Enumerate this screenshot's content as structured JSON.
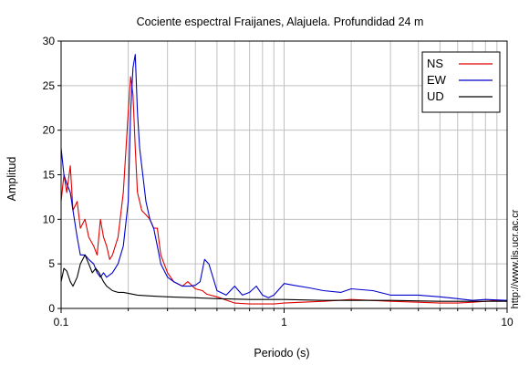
{
  "chart_data": {
    "type": "line",
    "title": "Cociente espectral Fraijanes, Alajuela. Profundidad 24 m",
    "xlabel": "Periodo (s)",
    "ylabel": "Amplitud",
    "xscale": "log",
    "xlim": [
      0.1,
      10
    ],
    "ylim": [
      0,
      30
    ],
    "x_ticks": [
      0.1,
      1,
      10
    ],
    "x_tick_labels": [
      "0.1",
      "1",
      "10"
    ],
    "y_ticks": [
      0,
      5,
      10,
      15,
      20,
      25,
      30
    ],
    "y_tick_labels": [
      "0",
      "5",
      "10",
      "15",
      "20",
      "25",
      "30"
    ],
    "grid": true,
    "legend_position": "top-right",
    "side_note": "http://www.lis.ucr.ac.cr",
    "series": [
      {
        "name": "NS",
        "color": "#e00000",
        "x": [
          0.1,
          0.103,
          0.106,
          0.11,
          0.113,
          0.118,
          0.122,
          0.128,
          0.133,
          0.14,
          0.145,
          0.15,
          0.155,
          0.16,
          0.165,
          0.17,
          0.18,
          0.19,
          0.2,
          0.205,
          0.21,
          0.215,
          0.22,
          0.225,
          0.23,
          0.24,
          0.25,
          0.26,
          0.27,
          0.28,
          0.3,
          0.32,
          0.35,
          0.37,
          0.4,
          0.43,
          0.45,
          0.5,
          0.6,
          0.7,
          0.8,
          0.9,
          1.0,
          1.2,
          1.5,
          2.0,
          3.0,
          4.0,
          5.0,
          6.0,
          7.0,
          8.0,
          9.0,
          10.0
        ],
        "y": [
          12,
          15,
          13,
          16,
          11,
          12,
          9,
          10,
          8,
          7,
          6,
          10,
          8,
          7,
          5.5,
          6,
          8,
          13,
          22,
          26,
          24,
          18,
          13,
          12,
          11,
          10.5,
          10,
          9,
          9,
          6,
          4,
          3,
          2.5,
          3,
          2.2,
          2,
          1.6,
          1.3,
          0.6,
          0.5,
          0.5,
          0.5,
          0.6,
          0.7,
          0.8,
          1.0,
          0.8,
          0.7,
          0.6,
          0.6,
          0.7,
          0.8,
          0.9,
          0.8
        ]
      },
      {
        "name": "EW",
        "color": "#0000cc",
        "x": [
          0.1,
          0.103,
          0.106,
          0.11,
          0.113,
          0.118,
          0.122,
          0.128,
          0.133,
          0.14,
          0.145,
          0.15,
          0.155,
          0.16,
          0.17,
          0.18,
          0.19,
          0.2,
          0.205,
          0.21,
          0.215,
          0.22,
          0.225,
          0.23,
          0.24,
          0.25,
          0.26,
          0.27,
          0.28,
          0.3,
          0.32,
          0.35,
          0.38,
          0.4,
          0.42,
          0.44,
          0.46,
          0.5,
          0.55,
          0.6,
          0.65,
          0.7,
          0.75,
          0.8,
          0.85,
          0.9,
          1.0,
          1.1,
          1.3,
          1.5,
          1.8,
          2.0,
          2.5,
          3.0,
          4.0,
          5.0,
          6.0,
          7.0,
          8.0,
          10.0
        ],
        "y": [
          18,
          15,
          14,
          13,
          11,
          8,
          6,
          6,
          5.5,
          5,
          4,
          3.5,
          4,
          3.5,
          4,
          5,
          7,
          12,
          22,
          27,
          28.5,
          22,
          18,
          16,
          12,
          10,
          9,
          7,
          5,
          3.5,
          3,
          2.5,
          2.5,
          2.6,
          3,
          5.5,
          5,
          2,
          1.5,
          2.5,
          1.5,
          1.8,
          2.5,
          1.5,
          1.2,
          1.5,
          2.8,
          2.6,
          2.3,
          2.0,
          1.8,
          2.2,
          2.0,
          1.5,
          1.5,
          1.3,
          1.1,
          0.9,
          1.0,
          0.9
        ]
      },
      {
        "name": "UD",
        "color": "#000000",
        "x": [
          0.1,
          0.103,
          0.106,
          0.11,
          0.113,
          0.118,
          0.122,
          0.128,
          0.133,
          0.138,
          0.143,
          0.148,
          0.155,
          0.16,
          0.17,
          0.18,
          0.19,
          0.2,
          0.22,
          0.25,
          0.3,
          0.4,
          0.5,
          0.7,
          1.0,
          1.5,
          2.0,
          3.0,
          5.0,
          10.0
        ],
        "y": [
          3,
          4.5,
          4.2,
          3,
          2.5,
          3.5,
          5,
          6,
          5,
          4,
          4.5,
          4,
          3,
          2.5,
          2,
          1.8,
          1.8,
          1.7,
          1.5,
          1.4,
          1.3,
          1.2,
          1.1,
          1.0,
          1.0,
          0.9,
          0.9,
          0.9,
          0.8,
          0.8
        ]
      }
    ]
  }
}
